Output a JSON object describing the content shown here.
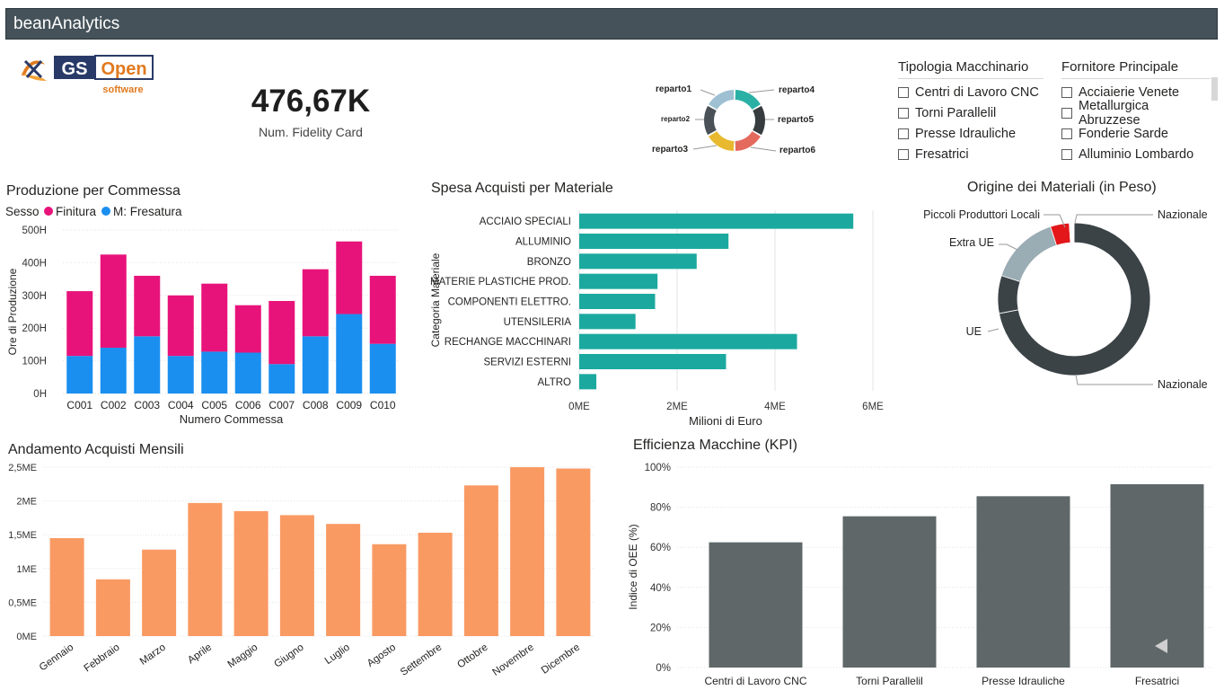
{
  "app": {
    "title": "beanAnalytics"
  },
  "logo": {
    "brand_a": "GS",
    "brand_b": "Open",
    "tagline": "software"
  },
  "kpi": {
    "value": "476,67K",
    "label": "Num. Fidelity Card"
  },
  "reparto_donut": {
    "labels": [
      "reparto1",
      "reparto2",
      "reparto3",
      "reparto4",
      "reparto5",
      "reparto6"
    ],
    "values": [
      1,
      1,
      1,
      1,
      1,
      1
    ],
    "colors": [
      "#9ec0d2",
      "#4b5257",
      "#e8b92f",
      "#2bb0a5",
      "#363c40",
      "#e56a5e"
    ]
  },
  "slicers": {
    "tipologia": {
      "title": "Tipologia Macchinario",
      "items": [
        "Centri di Lavoro CNC",
        "Torni Parallelil",
        "Presse Idrauliche",
        "Fresatrici"
      ]
    },
    "fornitore": {
      "title": "Fornitore Principale",
      "items": [
        "Acciaierie Venete",
        "Metallurgica Abruzzese",
        "Fonderie Sarde",
        "Alluminio Lombardo"
      ]
    }
  },
  "colors": {
    "finitura": "#e8137a",
    "fresatura": "#1a8ff0",
    "teal": "#1ba99f",
    "orange": "#f99a63",
    "gray_bar": "#5f6769",
    "donut_dark": "#3b4347",
    "donut_light": "#9aacb4",
    "donut_red": "#e3161a"
  },
  "chart_data": [
    {
      "type": "bar",
      "title": "Produzione per Commessa",
      "legend_title": "Sesso",
      "legend_position": "top-left",
      "xlabel": "Numero Commessa",
      "ylabel": "Ore di Produzione",
      "categories": [
        "C001",
        "C002",
        "C003",
        "C004",
        "C005",
        "C006",
        "C007",
        "C008",
        "C009",
        "C010"
      ],
      "series": [
        {
          "name": "M: Fresatura",
          "values": [
            115,
            140,
            175,
            115,
            128,
            125,
            90,
            175,
            243,
            152
          ]
        },
        {
          "name": "Finitura",
          "values": [
            198,
            285,
            185,
            185,
            208,
            145,
            193,
            205,
            222,
            208
          ]
        }
      ],
      "stacked": true,
      "ylim": [
        0,
        500
      ],
      "yticks": [
        "0H",
        "100H",
        "200H",
        "300H",
        "400H",
        "500H"
      ],
      "grid": true
    },
    {
      "type": "bar",
      "orientation": "horizontal",
      "title": "Spesa Acquisti per Materiale",
      "xlabel": "Milioni di Euro",
      "ylabel": "Categoria Materiale",
      "categories": [
        "ACCIAIO SPECIALI",
        "ALLUMINIO",
        "BRONZO",
        "MATERIE PLASTICHE PROD.",
        "COMPONENTI ELETTRO.",
        "UTENSILERIA",
        "RECHANGE MACCHINARI",
        "SERVIZI ESTERNI",
        "ALTRO"
      ],
      "values": [
        5.6,
        3.05,
        2.4,
        1.6,
        1.55,
        1.15,
        4.45,
        3.0,
        0.35
      ],
      "xlim": [
        0,
        6
      ],
      "xticks": [
        "0ME",
        "2ME",
        "4ME",
        "6ME"
      ],
      "grid": true
    },
    {
      "type": "pie",
      "donut": true,
      "title": "Origine dei Materiali (in Peso)",
      "labels": [
        "Nazionale",
        "UE",
        "Extra UE",
        "Piccoli Produttori Locali",
        "Nazionale"
      ],
      "values": [
        72,
        8,
        15,
        4,
        1
      ]
    },
    {
      "type": "bar",
      "title": "Andamento Acquisti Mensili",
      "categories": [
        "Gennaio",
        "Febbraio",
        "Marzo",
        "Aprile",
        "Maggio",
        "Giugno",
        "Luglio",
        "Agosto",
        "Settembre",
        "Ottobre",
        "Novembre",
        "Dicembre"
      ],
      "values": [
        1.45,
        0.84,
        1.28,
        1.97,
        1.85,
        1.79,
        1.66,
        1.36,
        1.53,
        2.23,
        2.5,
        2.48
      ],
      "ylim": [
        0,
        2.5
      ],
      "yticks": [
        "0ME",
        "0,5ME",
        "1ME",
        "1,5ME",
        "2ME",
        "2,5ME"
      ],
      "grid": true
    },
    {
      "type": "bar",
      "title": "Efficienza Macchine (KPI)",
      "ylabel": "Indice di OEE (%)",
      "categories": [
        "Centri di Lavoro CNC",
        "Torni Parallelil",
        "Presse Idrauliche",
        "Fresatrici"
      ],
      "values": [
        62.5,
        75.5,
        85.5,
        91.5
      ],
      "ylim": [
        0,
        100
      ],
      "yticks": [
        "0%",
        "20%",
        "40%",
        "60%",
        "80%",
        "100%"
      ],
      "grid": true
    }
  ]
}
